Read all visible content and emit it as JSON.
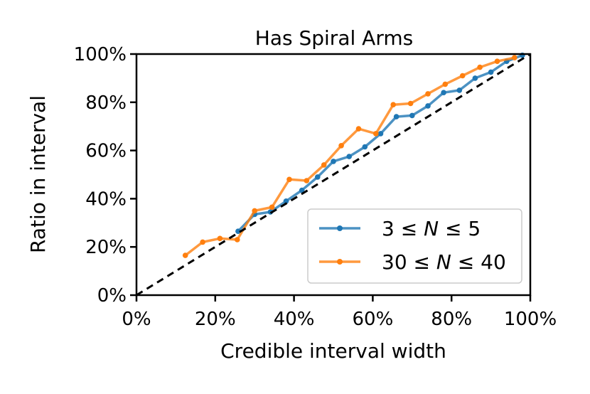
{
  "chart_data": {
    "type": "line",
    "title": "Has Spiral Arms",
    "xlabel": "Credible interval width",
    "ylabel": "Ratio in interval",
    "xlim": [
      0,
      100
    ],
    "ylim": [
      0,
      100
    ],
    "xticks": [
      "0%",
      "20%",
      "40%",
      "60%",
      "80%",
      "100%"
    ],
    "yticks": [
      "0%",
      "20%",
      "40%",
      "60%",
      "80%",
      "100%"
    ],
    "grid": false,
    "legend_position": "lower-right",
    "reference_line": {
      "style": "dashed",
      "color": "#000000",
      "x": [
        0,
        100
      ],
      "y": [
        0,
        100
      ]
    },
    "series": [
      {
        "name": "3 ≤ N ≤ 5",
        "name_parts": {
          "a": "3",
          "le1": "≤",
          "n": "N",
          "le2": "≤",
          "b": "5"
        },
        "color": "#1f77b4",
        "x": [
          25.8,
          30,
          34,
          38,
          42,
          46,
          50,
          54,
          58,
          62,
          66,
          70,
          74,
          78,
          82,
          86,
          90,
          94,
          98
        ],
        "y": [
          26.5,
          33.5,
          34.5,
          39,
          43.5,
          49,
          55.5,
          57.5,
          61.5,
          67,
          74,
          74.5,
          78.5,
          84,
          85,
          90,
          92.5,
          97,
          99.5
        ]
      },
      {
        "name": "30 ≤ N ≤ 40",
        "name_parts": {
          "a": "30",
          "le1": "≤",
          "n": "N",
          "le2": "≤",
          "b": "40"
        },
        "color": "#ff7f0e",
        "x": [
          12.4,
          16.8,
          21.2,
          25.6,
          30,
          34.4,
          38.8,
          43.2,
          47.6,
          52,
          56.4,
          60.8,
          65.2,
          69.6,
          74,
          78.4,
          82.8,
          87.2,
          91.6,
          96
        ],
        "y": [
          16.5,
          22,
          23.5,
          23,
          35,
          36.5,
          48,
          47.5,
          54,
          62,
          69,
          67,
          79,
          79.5,
          83.5,
          87.5,
          91,
          94.5,
          97,
          98.5
        ]
      }
    ]
  }
}
